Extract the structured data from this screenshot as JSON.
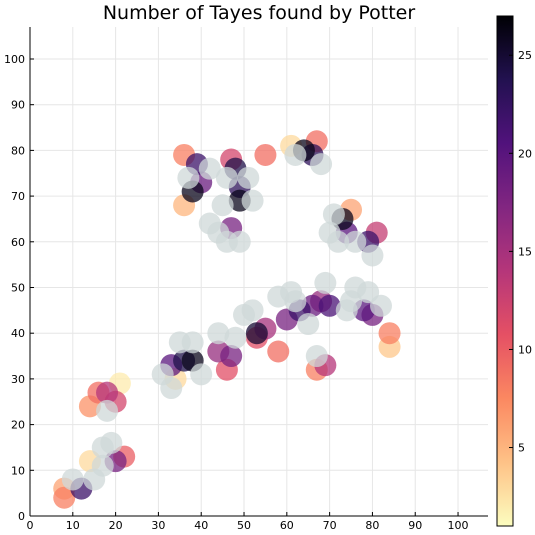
{
  "chart_data": {
    "type": "scatter",
    "title": "Number of Tayes found by Potter",
    "xlabel": "",
    "ylabel": "",
    "xlim": [
      0,
      107
    ],
    "ylim": [
      0,
      107
    ],
    "xticks": [
      0,
      10,
      20,
      30,
      40,
      50,
      60,
      70,
      80,
      90,
      100
    ],
    "yticks": [
      0,
      10,
      20,
      30,
      40,
      50,
      60,
      70,
      80,
      90,
      100
    ],
    "grid": true,
    "colorbar": {
      "colormap": "magma-reversed",
      "range": [
        1,
        27
      ],
      "ticks": [
        5,
        10,
        15,
        20,
        25
      ],
      "colors": [
        "#fcfdbf",
        "#fec287",
        "#fb8861",
        "#e55064",
        "#b5367a",
        "#822681",
        "#51127c",
        "#221150",
        "#000004"
      ]
    },
    "background_color": "#cfd8d8",
    "points": [
      {
        "x": 8,
        "y": 6,
        "c": 6
      },
      {
        "x": 10,
        "y": 8,
        "c": 1
      },
      {
        "x": 12,
        "y": 6,
        "c": 22
      },
      {
        "x": 8,
        "y": 4,
        "c": 8
      },
      {
        "x": 15,
        "y": 8,
        "c": 1
      },
      {
        "x": 14,
        "y": 12,
        "c": 3
      },
      {
        "x": 17,
        "y": 15,
        "c": 1
      },
      {
        "x": 20,
        "y": 12,
        "c": 18
      },
      {
        "x": 22,
        "y": 13,
        "c": 10
      },
      {
        "x": 17,
        "y": 11,
        "c": 1
      },
      {
        "x": 19,
        "y": 16,
        "c": 1
      },
      {
        "x": 14,
        "y": 24,
        "c": 7
      },
      {
        "x": 16,
        "y": 27,
        "c": 9
      },
      {
        "x": 18,
        "y": 27,
        "c": 14
      },
      {
        "x": 20,
        "y": 25,
        "c": 12
      },
      {
        "x": 21,
        "y": 29,
        "c": 2
      },
      {
        "x": 18,
        "y": 23,
        "c": 1
      },
      {
        "x": 31,
        "y": 31,
        "c": 1
      },
      {
        "x": 33,
        "y": 33,
        "c": 20
      },
      {
        "x": 36,
        "y": 34,
        "c": 24
      },
      {
        "x": 38,
        "y": 34,
        "c": 26
      },
      {
        "x": 34,
        "y": 30,
        "c": 3
      },
      {
        "x": 35,
        "y": 38,
        "c": 1
      },
      {
        "x": 38,
        "y": 38,
        "c": 1
      },
      {
        "x": 40,
        "y": 31,
        "c": 1
      },
      {
        "x": 33,
        "y": 28,
        "c": 1
      },
      {
        "x": 44,
        "y": 36,
        "c": 16
      },
      {
        "x": 47,
        "y": 35,
        "c": 18
      },
      {
        "x": 46,
        "y": 32,
        "c": 11
      },
      {
        "x": 44,
        "y": 40,
        "c": 1
      },
      {
        "x": 48,
        "y": 39,
        "c": 1
      },
      {
        "x": 50,
        "y": 44,
        "c": 1
      },
      {
        "x": 53,
        "y": 40,
        "c": 25
      },
      {
        "x": 55,
        "y": 41,
        "c": 15
      },
      {
        "x": 53,
        "y": 39,
        "c": 11
      },
      {
        "x": 58,
        "y": 36,
        "c": 9
      },
      {
        "x": 52,
        "y": 45,
        "c": 1
      },
      {
        "x": 58,
        "y": 48,
        "c": 1
      },
      {
        "x": 60,
        "y": 43,
        "c": 18
      },
      {
        "x": 63,
        "y": 45,
        "c": 22
      },
      {
        "x": 61,
        "y": 49,
        "c": 1
      },
      {
        "x": 65,
        "y": 42,
        "c": 1
      },
      {
        "x": 62,
        "y": 47,
        "c": 1
      },
      {
        "x": 66,
        "y": 46,
        "c": 19
      },
      {
        "x": 68,
        "y": 47,
        "c": 16
      },
      {
        "x": 70,
        "y": 46,
        "c": 21
      },
      {
        "x": 69,
        "y": 51,
        "c": 1
      },
      {
        "x": 67,
        "y": 35,
        "c": 1
      },
      {
        "x": 67,
        "y": 32,
        "c": 8
      },
      {
        "x": 69,
        "y": 33,
        "c": 14
      },
      {
        "x": 75,
        "y": 47,
        "c": 1
      },
      {
        "x": 78,
        "y": 45,
        "c": 20
      },
      {
        "x": 80,
        "y": 44,
        "c": 18
      },
      {
        "x": 76,
        "y": 50,
        "c": 1
      },
      {
        "x": 82,
        "y": 46,
        "c": 1
      },
      {
        "x": 79,
        "y": 49,
        "c": 1
      },
      {
        "x": 84,
        "y": 40,
        "c": 8
      },
      {
        "x": 84,
        "y": 37,
        "c": 4
      },
      {
        "x": 74,
        "y": 45,
        "c": 1
      },
      {
        "x": 36,
        "y": 79,
        "c": 8
      },
      {
        "x": 37,
        "y": 74,
        "c": 1
      },
      {
        "x": 39,
        "y": 77,
        "c": 22
      },
      {
        "x": 38,
        "y": 71,
        "c": 26
      },
      {
        "x": 36,
        "y": 68,
        "c": 5
      },
      {
        "x": 40,
        "y": 73,
        "c": 19
      },
      {
        "x": 42,
        "y": 76,
        "c": 1
      },
      {
        "x": 46,
        "y": 74,
        "c": 1
      },
      {
        "x": 48,
        "y": 76,
        "c": 24
      },
      {
        "x": 49,
        "y": 72,
        "c": 23
      },
      {
        "x": 49,
        "y": 69,
        "c": 26
      },
      {
        "x": 51,
        "y": 74,
        "c": 1
      },
      {
        "x": 52,
        "y": 69,
        "c": 1
      },
      {
        "x": 45,
        "y": 68,
        "c": 1
      },
      {
        "x": 47,
        "y": 63,
        "c": 18
      },
      {
        "x": 44,
        "y": 62,
        "c": 1
      },
      {
        "x": 49,
        "y": 60,
        "c": 1
      },
      {
        "x": 46,
        "y": 60,
        "c": 1
      },
      {
        "x": 42,
        "y": 64,
        "c": 1
      },
      {
        "x": 47,
        "y": 78,
        "c": 12
      },
      {
        "x": 55,
        "y": 79,
        "c": 9
      },
      {
        "x": 61,
        "y": 81,
        "c": 3
      },
      {
        "x": 64,
        "y": 80,
        "c": 26
      },
      {
        "x": 66,
        "y": 79,
        "c": 23
      },
      {
        "x": 67,
        "y": 82,
        "c": 9
      },
      {
        "x": 68,
        "y": 77,
        "c": 1
      },
      {
        "x": 62,
        "y": 79,
        "c": 1
      },
      {
        "x": 71,
        "y": 66,
        "c": 1
      },
      {
        "x": 73,
        "y": 65,
        "c": 26
      },
      {
        "x": 74,
        "y": 62,
        "c": 20
      },
      {
        "x": 72,
        "y": 60,
        "c": 1
      },
      {
        "x": 76,
        "y": 60,
        "c": 1
      },
      {
        "x": 79,
        "y": 60,
        "c": 22
      },
      {
        "x": 81,
        "y": 62,
        "c": 13
      },
      {
        "x": 80,
        "y": 57,
        "c": 1
      },
      {
        "x": 75,
        "y": 67,
        "c": 6
      },
      {
        "x": 70,
        "y": 62,
        "c": 1
      }
    ]
  }
}
